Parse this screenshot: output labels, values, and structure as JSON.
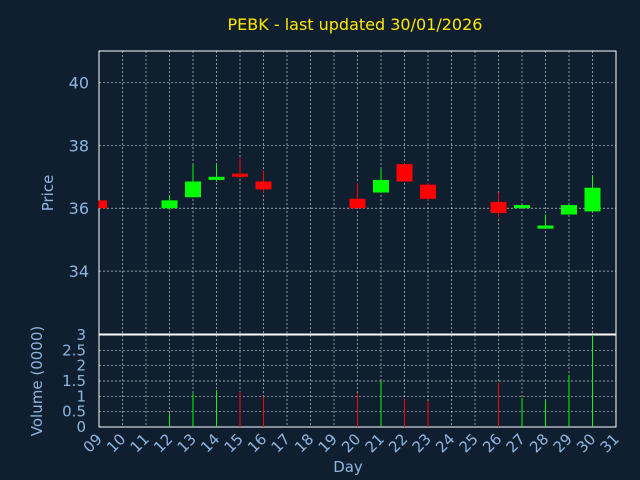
{
  "chart_data": {
    "type": "candlestick",
    "title": "PEBK - last updated 30/01/2026",
    "price_axis": {
      "label": "Price",
      "ylim": [
        32.0,
        41.0
      ],
      "ticks": [
        34,
        36,
        38,
        40
      ],
      "grid": true
    },
    "volume_axis": {
      "label": "Volume (0000)",
      "ylim": [
        0,
        3
      ],
      "ticks": [
        "0",
        "0.5",
        "1",
        "1.5",
        "2",
        "2.5",
        "3"
      ],
      "grid": true
    },
    "x_axis": {
      "label": "Day",
      "ticks": [
        "09",
        "10",
        "11",
        "12",
        "13",
        "14",
        "15",
        "16",
        "17",
        "18",
        "19",
        "20",
        "21",
        "22",
        "23",
        "24",
        "25",
        "26",
        "27",
        "28",
        "29",
        "30",
        "31"
      ]
    },
    "colors": {
      "up": "#00ff00",
      "down": "#ff0000",
      "background": "#0f1f30",
      "title": "#ffe800",
      "labels": "#8fb6e0"
    },
    "candles": [
      {
        "day": "09",
        "open": 36.25,
        "high": 36.25,
        "low": 36.0,
        "close": 36.0,
        "volume": 0.0
      },
      {
        "day": "12",
        "open": 36.0,
        "high": 36.4,
        "low": 35.95,
        "close": 36.25,
        "volume": 0.45
      },
      {
        "day": "13",
        "open": 36.35,
        "high": 37.4,
        "low": 36.35,
        "close": 36.85,
        "volume": 1.1
      },
      {
        "day": "14",
        "open": 36.9,
        "high": 37.4,
        "low": 36.85,
        "close": 37.0,
        "volume": 1.2
      },
      {
        "day": "15",
        "open": 37.1,
        "high": 37.6,
        "low": 36.95,
        "close": 37.0,
        "volume": 1.15
      },
      {
        "day": "16",
        "open": 36.85,
        "high": 37.2,
        "low": 36.5,
        "close": 36.6,
        "volume": 1.0
      },
      {
        "day": "20",
        "open": 36.3,
        "high": 36.8,
        "low": 36.0,
        "close": 36.0,
        "volume": 1.1
      },
      {
        "day": "21",
        "open": 36.5,
        "high": 37.25,
        "low": 36.5,
        "close": 36.9,
        "volume": 1.5
      },
      {
        "day": "22",
        "open": 37.4,
        "high": 37.45,
        "low": 36.85,
        "close": 36.85,
        "volume": 0.9
      },
      {
        "day": "23",
        "open": 36.75,
        "high": 36.8,
        "low": 36.25,
        "close": 36.3,
        "volume": 0.85
      },
      {
        "day": "26",
        "open": 36.2,
        "high": 36.5,
        "low": 35.7,
        "close": 35.85,
        "volume": 1.45
      },
      {
        "day": "27",
        "open": 36.0,
        "high": 36.1,
        "low": 36.0,
        "close": 36.1,
        "volume": 0.95
      },
      {
        "day": "28",
        "open": 35.35,
        "high": 35.8,
        "low": 35.35,
        "close": 35.45,
        "volume": 0.85
      },
      {
        "day": "29",
        "open": 35.8,
        "high": 36.15,
        "low": 35.8,
        "close": 36.1,
        "volume": 1.7
      },
      {
        "day": "30",
        "open": 35.9,
        "high": 37.0,
        "low": 35.9,
        "close": 36.65,
        "volume": 3.0
      }
    ]
  }
}
